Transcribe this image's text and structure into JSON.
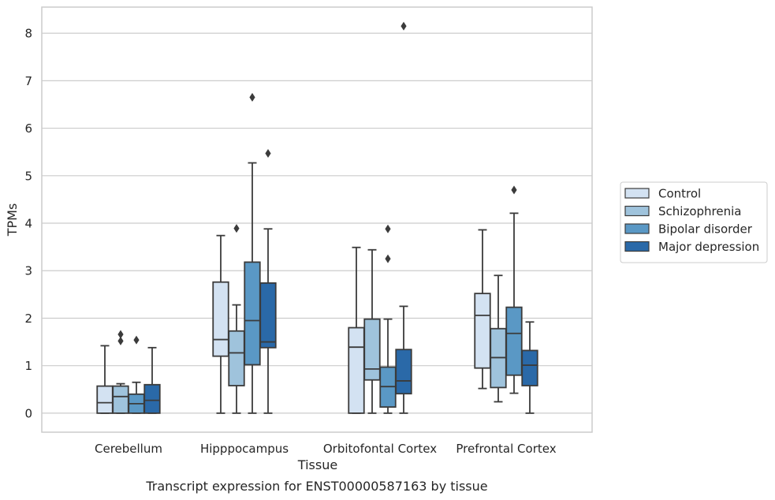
{
  "caption": "Transcript expression for ENST00000587163 by tissue",
  "chart_data": {
    "type": "box",
    "title": "",
    "xlabel": "Tissue",
    "ylabel": "TPMs",
    "ylim": [
      -0.4,
      8.55
    ],
    "yticks": [
      0,
      1,
      2,
      3,
      4,
      5,
      6,
      7,
      8
    ],
    "grid": "horizontal",
    "legend_position": "right",
    "categories": [
      "Cerebellum",
      "Hipppocampus",
      "Orbitofontal Cortex",
      "Prefrontal Cortex"
    ],
    "series": [
      {
        "name": "Control",
        "color": "#d3e2f2",
        "boxes": [
          {
            "whislo": 0.0,
            "q1": 0.0,
            "med": 0.22,
            "q3": 0.57,
            "whishi": 1.42,
            "fliers": []
          },
          {
            "whislo": 0.0,
            "q1": 1.2,
            "med": 1.55,
            "q3": 2.76,
            "whishi": 3.74,
            "fliers": []
          },
          {
            "whislo": 0.0,
            "q1": 0.0,
            "med": 1.39,
            "q3": 1.8,
            "whishi": 3.49,
            "fliers": []
          },
          {
            "whislo": 0.52,
            "q1": 0.95,
            "med": 2.06,
            "q3": 2.52,
            "whishi": 3.86,
            "fliers": []
          }
        ]
      },
      {
        "name": "Schizophrenia",
        "color": "#9fc3dc",
        "boxes": [
          {
            "whislo": 0.0,
            "q1": 0.0,
            "med": 0.35,
            "q3": 0.57,
            "whishi": 0.62,
            "fliers": [
              1.52,
              1.66
            ]
          },
          {
            "whislo": 0.0,
            "q1": 0.58,
            "med": 1.27,
            "q3": 1.73,
            "whishi": 2.28,
            "fliers": [
              3.89
            ]
          },
          {
            "whislo": 0.0,
            "q1": 0.7,
            "med": 0.93,
            "q3": 1.98,
            "whishi": 3.44,
            "fliers": []
          },
          {
            "whislo": 0.24,
            "q1": 0.54,
            "med": 1.17,
            "q3": 1.78,
            "whishi": 2.9,
            "fliers": []
          }
        ]
      },
      {
        "name": "Bipolar disorder",
        "color": "#5a98c5",
        "boxes": [
          {
            "whislo": 0.0,
            "q1": 0.0,
            "med": 0.2,
            "q3": 0.4,
            "whishi": 0.65,
            "fliers": [
              1.54
            ]
          },
          {
            "whislo": 0.0,
            "q1": 1.02,
            "med": 1.95,
            "q3": 3.18,
            "whishi": 5.27,
            "fliers": [
              6.65
            ]
          },
          {
            "whislo": 0.0,
            "q1": 0.13,
            "med": 0.56,
            "q3": 0.97,
            "whishi": 1.98,
            "fliers": [
              3.25,
              3.88
            ]
          },
          {
            "whislo": 0.42,
            "q1": 0.8,
            "med": 1.68,
            "q3": 2.23,
            "whishi": 4.21,
            "fliers": [
              4.7
            ]
          }
        ]
      },
      {
        "name": "Major depression",
        "color": "#2a69a8",
        "boxes": [
          {
            "whislo": 0.0,
            "q1": 0.0,
            "med": 0.27,
            "q3": 0.6,
            "whishi": 1.38,
            "fliers": []
          },
          {
            "whislo": 0.0,
            "q1": 1.38,
            "med": 1.5,
            "q3": 2.74,
            "whishi": 3.88,
            "fliers": [
              5.47
            ]
          },
          {
            "whislo": 0.0,
            "q1": 0.41,
            "med": 0.68,
            "q3": 1.34,
            "whishi": 2.25,
            "fliers": [
              8.15
            ]
          },
          {
            "whislo": 0.0,
            "q1": 0.58,
            "med": 1.01,
            "q3": 1.32,
            "whishi": 1.92,
            "fliers": []
          }
        ]
      }
    ]
  }
}
